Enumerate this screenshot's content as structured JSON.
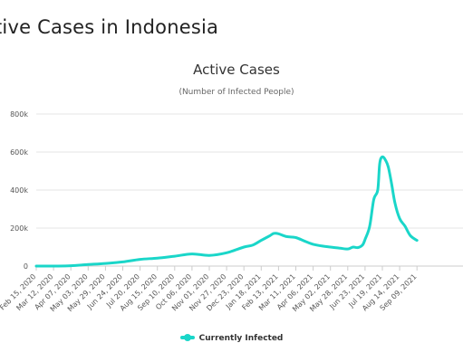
{
  "page": {
    "heading": "tive Cases in Indonesia"
  },
  "colors": {
    "series": "#1ad6c9",
    "grid": "#e6e6e6",
    "axis": "#cccccc"
  },
  "chart_data": {
    "type": "line",
    "title": "Active Cases",
    "subtitle": "(Number of Infected People)",
    "xlabel": "",
    "ylabel": "",
    "ylim": [
      0,
      800000
    ],
    "y_ticks": [
      0,
      200000,
      400000,
      600000,
      800000
    ],
    "y_tick_labels": [
      "0",
      "200k",
      "400k",
      "600k",
      "800k"
    ],
    "grid": true,
    "legend": "bottom-center",
    "x_tick_labels": [
      "Feb 15, 2020",
      "Mar 12, 2020",
      "Apr 07, 2020",
      "May 03, 2020",
      "May 29, 2020",
      "Jun 24, 2020",
      "Jul 20, 2020",
      "Aug 15, 2020",
      "Sep 10, 2020",
      "Oct 06, 2020",
      "Nov 01, 2020",
      "Nov 27, 2020",
      "Dec 23, 2020",
      "Jan 18, 2021",
      "Feb 13, 2021",
      "Mar 11, 2021",
      "Apr 06, 2021",
      "May 02, 2021",
      "May 28, 2021",
      "Jun 23, 2021",
      "Jul 19, 2021",
      "Aug 14, 2021",
      "Sep 09, 2021"
    ],
    "series": [
      {
        "name": "Currently Infected",
        "x": [
          "2020-02-15",
          "2020-03-12",
          "2020-04-07",
          "2020-05-03",
          "2020-05-29",
          "2020-06-24",
          "2020-07-20",
          "2020-08-15",
          "2020-09-10",
          "2020-10-06",
          "2020-11-01",
          "2020-11-27",
          "2020-12-23",
          "2021-01-05",
          "2021-01-18",
          "2021-01-31",
          "2021-02-06",
          "2021-02-13",
          "2021-02-25",
          "2021-03-11",
          "2021-03-25",
          "2021-04-06",
          "2021-04-20",
          "2021-05-02",
          "2021-05-15",
          "2021-05-28",
          "2021-06-05",
          "2021-06-12",
          "2021-06-19",
          "2021-06-23",
          "2021-06-30",
          "2021-07-06",
          "2021-07-12",
          "2021-07-15",
          "2021-07-19",
          "2021-07-24",
          "2021-07-28",
          "2021-08-02",
          "2021-08-07",
          "2021-08-14",
          "2021-08-22",
          "2021-08-30",
          "2021-09-09"
        ],
        "values": [
          0,
          0,
          2000,
          8000,
          14000,
          22000,
          35000,
          42000,
          52000,
          64000,
          56000,
          70000,
          100000,
          110000,
          135000,
          160000,
          172000,
          170000,
          155000,
          150000,
          130000,
          115000,
          105000,
          100000,
          95000,
          90000,
          100000,
          97000,
          110000,
          140000,
          210000,
          350000,
          400000,
          540000,
          575000,
          555000,
          520000,
          430000,
          330000,
          250000,
          210000,
          160000,
          135000
        ]
      }
    ]
  }
}
